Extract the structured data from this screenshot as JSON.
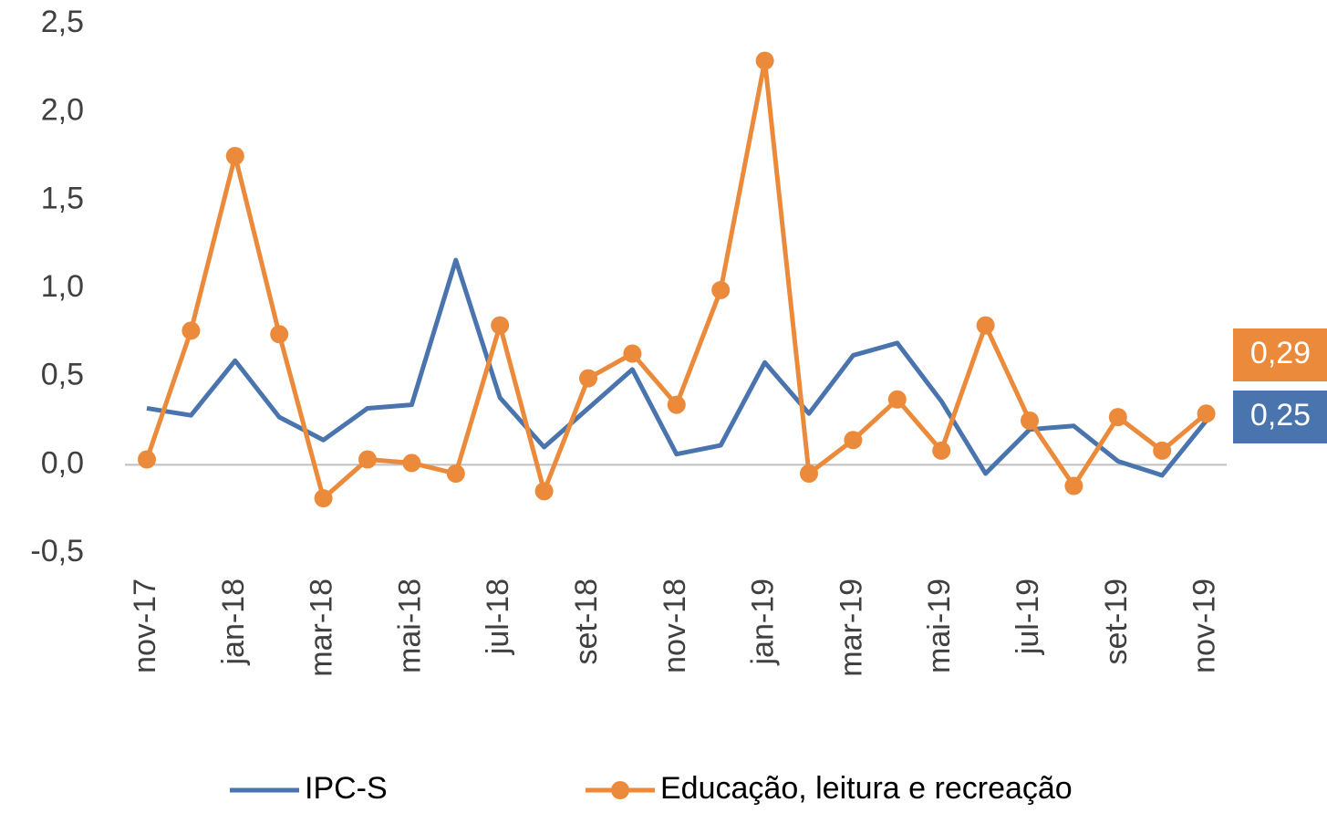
{
  "chart_data": {
    "type": "line",
    "categories": [
      "nov-17",
      null,
      "jan-18",
      null,
      "mar-18",
      null,
      "mai-18",
      null,
      "jul-18",
      null,
      "set-18",
      null,
      "nov-18",
      null,
      "jan-19",
      null,
      "mar-19",
      null,
      "mai-19",
      null,
      "jul-19",
      null,
      "set-19",
      null,
      "nov-19"
    ],
    "series": [
      {
        "name": "IPC-S",
        "color": "#4a74ae",
        "markers": false,
        "values": [
          0.32,
          0.28,
          0.59,
          0.27,
          0.14,
          0.32,
          0.34,
          1.16,
          0.38,
          0.1,
          0.32,
          0.54,
          0.06,
          0.11,
          0.58,
          0.29,
          0.62,
          0.69,
          0.36,
          -0.05,
          0.2,
          0.22,
          0.02,
          -0.06,
          0.25
        ],
        "value_labels": [
          null,
          null,
          null,
          null,
          null,
          null,
          null,
          null,
          null,
          null,
          null,
          null,
          null,
          null,
          null,
          null,
          null,
          null,
          null,
          null,
          null,
          null,
          null,
          null,
          "0,25"
        ]
      },
      {
        "name": "Educação, leitura e recreação",
        "color": "#eb8a3a",
        "markers": true,
        "values": [
          0.03,
          0.76,
          1.75,
          0.74,
          -0.19,
          0.03,
          0.01,
          -0.05,
          0.79,
          -0.15,
          0.49,
          0.63,
          0.34,
          0.99,
          2.29,
          -0.05,
          0.14,
          0.37,
          0.08,
          0.79,
          0.25,
          -0.12,
          0.27,
          0.08,
          0.29
        ],
        "value_labels": [
          null,
          null,
          null,
          null,
          null,
          null,
          null,
          null,
          null,
          null,
          null,
          null,
          null,
          null,
          null,
          null,
          null,
          null,
          null,
          null,
          null,
          null,
          null,
          null,
          "0,29"
        ]
      }
    ],
    "ylim": [
      -0.5,
      2.5
    ],
    "yticks": [
      {
        "value": -0.5,
        "label": "-0,5"
      },
      {
        "value": 0,
        "label": "0,0"
      },
      {
        "value": 0.5,
        "label": "0,5"
      },
      {
        "value": 1,
        "label": "1,0"
      },
      {
        "value": 1.5,
        "label": "1,5"
      },
      {
        "value": 2,
        "label": "2,0"
      },
      {
        "value": 2.5,
        "label": "2,5"
      }
    ],
    "grid": false,
    "legend": "bottom"
  }
}
